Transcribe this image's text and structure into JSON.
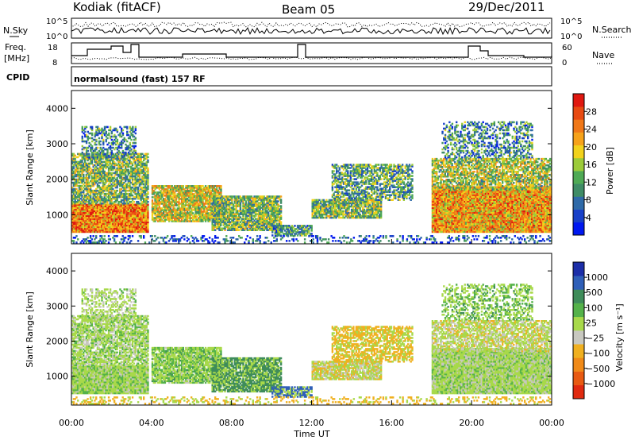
{
  "header": {
    "station": "Kodiak (fitACF)",
    "beam": "Beam 05",
    "date": "29/Dec/2011"
  },
  "status_panel": {
    "left_top_label": "N.Sky",
    "left_mid_label_1": "Freq.",
    "left_mid_label_2": "[MHz]",
    "left_bot_label": "CPID",
    "right_top_label": "N.Search",
    "right_mid_label": "Nave",
    "nsky_ticks": [
      "10^5",
      "10^0"
    ],
    "freq_ticks": [
      "18",
      "8"
    ],
    "nave_ticks": [
      "60",
      "0"
    ],
    "nsearch_ticks": [
      "10^5",
      "10^0"
    ],
    "cpid_text": "normalsound (fast) 157 RF"
  },
  "colors": {
    "power_scale": [
      "#0018f0",
      "#1840c8",
      "#2f6aa8",
      "#3f8c66",
      "#4faa55",
      "#9ccb3a",
      "#f2d21c",
      "#f6a21a",
      "#f07818",
      "#e84a12",
      "#e01810"
    ],
    "velocity_scale": [
      "#1c2ea8",
      "#2f5fb8",
      "#3f8c5a",
      "#55b24a",
      "#a8d94a",
      "#c8c8c0",
      "#f0b020",
      "#f08a18",
      "#e85a12",
      "#e02a10"
    ]
  },
  "chart_data": [
    {
      "type": "heatmap",
      "name": "power",
      "title": "",
      "xlabel": "",
      "ylabel": "Slant Range [km]",
      "xlim": [
        "00:00",
        "24:00"
      ],
      "ylim": [
        180,
        4500
      ],
      "yticks": [
        "1000",
        "2000",
        "3000",
        "4000"
      ],
      "colorbar_label": "Power [dB]",
      "colorbar_ticks": [
        "4",
        "8",
        "12",
        "16",
        "20",
        "24",
        "28"
      ],
      "colorbar_range": [
        0,
        32
      ]
    },
    {
      "type": "heatmap",
      "name": "velocity",
      "title": "",
      "xlabel": "Time UT",
      "ylabel": "Slant Range [km]",
      "xlim": [
        "00:00",
        "24:00"
      ],
      "ylim": [
        180,
        4500
      ],
      "xticks": [
        "00:00",
        "04:00",
        "08:00",
        "12:00",
        "16:00",
        "20:00",
        "00:00"
      ],
      "yticks": [
        "1000",
        "2000",
        "3000",
        "4000"
      ],
      "colorbar_label": "Velocity [m s⁻¹]",
      "colorbar_ticks": [
        "1000",
        "500",
        "100",
        "25",
        "−25",
        "−100",
        "−500",
        "−1000"
      ]
    }
  ]
}
